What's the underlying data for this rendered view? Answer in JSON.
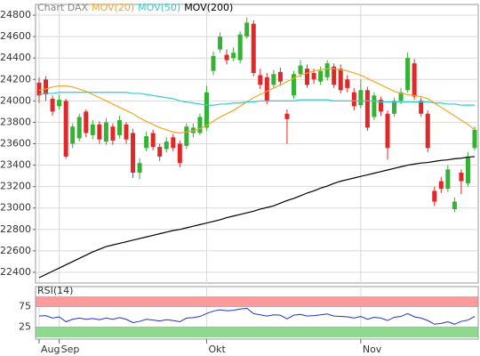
{
  "chart_data": [
    {
      "type": "candlestick",
      "title": "Chart DAX",
      "title_color": "#888888",
      "categories": [
        "Aug",
        null,
        null,
        "Sep",
        null,
        null,
        null,
        null,
        null,
        null,
        null,
        null,
        null,
        null,
        null,
        null,
        null,
        null,
        null,
        null,
        null,
        null,
        null,
        null,
        null,
        "Okt",
        null,
        null,
        null,
        null,
        null,
        null,
        null,
        null,
        null,
        null,
        null,
        null,
        null,
        null,
        null,
        null,
        null,
        null,
        null,
        null,
        null,
        null,
        "Nov",
        null,
        null,
        null,
        null,
        null,
        null,
        null,
        null,
        null,
        null,
        null,
        null,
        null,
        null,
        null,
        null,
        null
      ],
      "open": [
        24170,
        24200,
        24020,
        23950,
        24000,
        23600,
        23650,
        23900,
        23680,
        23780,
        23620,
        23760,
        23680,
        23780,
        23700,
        23330,
        23560,
        23700,
        23570,
        23550,
        23660,
        23600,
        23580,
        23700,
        23700,
        23750,
        24280,
        24480,
        24430,
        24400,
        24380,
        24600,
        24720,
        24240,
        24220,
        24150,
        24270,
        23880,
        24050,
        24250,
        24300,
        24260,
        24180,
        24220,
        24320,
        24300,
        24200,
        24080,
        23960,
        24100,
        23850,
        24010,
        23880,
        23880,
        24000,
        24100,
        24350,
        24000,
        23880,
        23160,
        23250,
        23180,
        22990,
        23330,
        23230,
        23560
      ],
      "high": [
        24220,
        24230,
        24050,
        24060,
        24020,
        23790,
        23880,
        23920,
        23820,
        23810,
        23840,
        23790,
        23860,
        23800,
        23740,
        23460,
        23710,
        23730,
        23600,
        23660,
        23690,
        23630,
        23790,
        23790,
        23880,
        24140,
        24460,
        24640,
        24480,
        24500,
        24650,
        24780,
        24750,
        24300,
        24260,
        24290,
        24310,
        23920,
        24280,
        24380,
        24340,
        24300,
        24320,
        24380,
        24350,
        24340,
        24240,
        24120,
        24200,
        24130,
        24080,
        24040,
        23910,
        24030,
        24120,
        24450,
        24390,
        24030,
        23910,
        23200,
        23290,
        23400,
        23100,
        23360,
        23520,
        23760
      ],
      "low": [
        23980,
        24000,
        23860,
        23920,
        23460,
        23560,
        23620,
        23660,
        23640,
        23600,
        23590,
        23590,
        23650,
        23600,
        23280,
        23270,
        23530,
        23540,
        23440,
        23520,
        23530,
        23380,
        23550,
        23660,
        23680,
        23720,
        24240,
        24450,
        24340,
        24370,
        24350,
        24580,
        24230,
        24110,
        23970,
        24120,
        24140,
        23600,
        24020,
        24220,
        24120,
        24160,
        24150,
        24190,
        24120,
        24070,
        24080,
        23910,
        23930,
        23720,
        23820,
        23860,
        23450,
        23850,
        23970,
        24080,
        24010,
        23850,
        23520,
        23020,
        23140,
        23150,
        22960,
        23130,
        23200,
        23540
      ],
      "close": [
        24050,
        24060,
        23900,
        24010,
        23480,
        23760,
        23850,
        23700,
        23780,
        23640,
        23800,
        23630,
        23820,
        23640,
        23330,
        23420,
        23670,
        23570,
        23480,
        23620,
        23560,
        23420,
        23760,
        23750,
        23850,
        24080,
        24420,
        24600,
        24380,
        24450,
        24620,
        24730,
        24260,
        24150,
        24000,
        24250,
        24180,
        23830,
        24250,
        24330,
        24150,
        24200,
        24280,
        24350,
        24150,
        24100,
        24120,
        23950,
        24100,
        23750,
        24050,
        23900,
        23560,
        24000,
        24080,
        24400,
        24040,
        23880,
        23560,
        23060,
        23180,
        23360,
        23060,
        23250,
        23480,
        23730
      ],
      "up_color": "#33b233",
      "down_color": "#e02828",
      "series": [
        {
          "name": "MOV(20)",
          "color": "#f5a623",
          "values": [
            24100,
            24110,
            24130,
            24140,
            24140,
            24130,
            24110,
            24090,
            24060,
            24030,
            24000,
            23970,
            23940,
            23910,
            23880,
            23840,
            23810,
            23780,
            23750,
            23730,
            23710,
            23700,
            23710,
            23720,
            23740,
            23770,
            23810,
            23850,
            23880,
            23910,
            23950,
            23990,
            24030,
            24060,
            24090,
            24120,
            24150,
            24180,
            24210,
            24240,
            24260,
            24280,
            24290,
            24300,
            24300,
            24290,
            24280,
            24260,
            24240,
            24210,
            24180,
            24150,
            24120,
            24090,
            24070,
            24060,
            24050,
            24040,
            24020,
            23980,
            23940,
            23900,
            23860,
            23820,
            23780,
            23730
          ]
        },
        {
          "name": "MOV(50)",
          "color": "#33cccc",
          "values": [
            24060,
            24070,
            24070,
            24080,
            24080,
            24080,
            24080,
            24080,
            24080,
            24080,
            24080,
            24080,
            24080,
            24080,
            24070,
            24070,
            24060,
            24050,
            24040,
            24030,
            24020,
            24000,
            23990,
            23980,
            23970,
            23960,
            23960,
            23970,
            23970,
            23980,
            23980,
            23990,
            23990,
            24000,
            24000,
            24000,
            24000,
            24000,
            24000,
            24010,
            24010,
            24010,
            24010,
            24010,
            24000,
            24000,
            24000,
            24000,
            24000,
            24000,
            24000,
            23990,
            23990,
            23990,
            23990,
            23990,
            23990,
            23990,
            23990,
            23980,
            23980,
            23970,
            23970,
            23960,
            23960,
            23960
          ]
        },
        {
          "name": "MOV(200)",
          "color": "#000000",
          "values": [
            22350,
            22380,
            22410,
            22440,
            22470,
            22500,
            22530,
            22560,
            22590,
            22615,
            22640,
            22655,
            22670,
            22685,
            22700,
            22715,
            22730,
            22745,
            22760,
            22775,
            22790,
            22800,
            22815,
            22830,
            22845,
            22860,
            22875,
            22890,
            22910,
            22925,
            22940,
            22955,
            22970,
            22990,
            23005,
            23020,
            23045,
            23070,
            23090,
            23115,
            23140,
            23160,
            23185,
            23205,
            23230,
            23250,
            23265,
            23280,
            23295,
            23310,
            23325,
            23340,
            23355,
            23370,
            23385,
            23400,
            23410,
            23420,
            23425,
            23435,
            23445,
            23450,
            23460,
            23465,
            23475,
            23480
          ]
        }
      ],
      "ylim": [
        22300,
        24900
      ],
      "yticks": [
        22400,
        22600,
        22800,
        23000,
        23200,
        23400,
        23600,
        23800,
        24000,
        24200,
        24400,
        24600,
        24800
      ],
      "grid": true
    },
    {
      "type": "line",
      "title": "RSI(14)",
      "series": [
        {
          "color": "#2233cc",
          "values": [
            52,
            53,
            47,
            50,
            38,
            44,
            47,
            44,
            46,
            43,
            47,
            44,
            48,
            44,
            36,
            39,
            44,
            42,
            40,
            43,
            41,
            38,
            47,
            48,
            51,
            58,
            64,
            67,
            65,
            66,
            69,
            71,
            58,
            55,
            52,
            55,
            54,
            45,
            54,
            56,
            52,
            53,
            55,
            57,
            52,
            51,
            50,
            47,
            51,
            44,
            49,
            47,
            41,
            49,
            51,
            58,
            50,
            47,
            41,
            32,
            34,
            38,
            32,
            39,
            42,
            51
          ]
        }
      ],
      "ylim": [
        0,
        100
      ],
      "yticks": [
        25,
        75
      ],
      "band_colors": [
        "#8fd98f",
        "#ff9a9a"
      ]
    }
  ]
}
